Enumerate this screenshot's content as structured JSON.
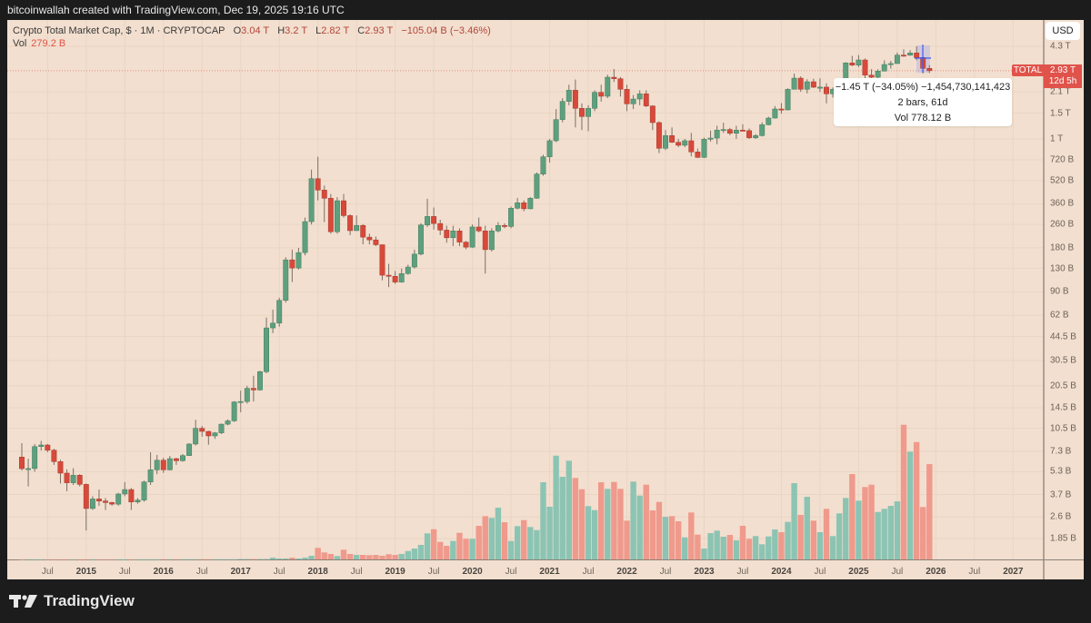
{
  "header": {
    "attribution": "bitcoinwallah created with TradingView.com, Dec 19, 2025 19:16 UTC"
  },
  "legend": {
    "symbol": "Crypto Total Market Cap, $ · 1M · CRYPTOCAP",
    "o_label": "O",
    "o": "3.04 T",
    "h_label": "H",
    "h": "3.2 T",
    "l_label": "L",
    "l": "2.82 T",
    "c_label": "C",
    "c": "2.93 T",
    "change": "−105.04 B (−3.46%)",
    "vol_label": "Vol",
    "vol": "279.2 B"
  },
  "currency_button": "USD",
  "price_badge": {
    "symbol": "TOTAL",
    "price": "2.93 T",
    "countdown": "12d 5h"
  },
  "measure_tooltip": {
    "line1": "−1.45 T (−34.05%) −1,454,730,141,423",
    "line2": "2 bars, 61d",
    "line3": "Vol 778.12 B"
  },
  "footer": {
    "brand": "TradingView"
  },
  "colors": {
    "up": "#5e9f7e",
    "down": "#d8493a",
    "vol_up": "#8cc4b3",
    "vol_down": "#ef9a8c",
    "background": "#f2dfcf",
    "crosshair": "#3d5cf0"
  },
  "chart_data": {
    "type": "candlestick",
    "title": "Crypto Total Market Cap",
    "interval": "1M",
    "yscale": "log",
    "units": "billions USD",
    "price_axis_ticks": [
      {
        "label": "4.3 T",
        "value": 4300
      },
      {
        "label": "2.1 T",
        "value": 2100
      },
      {
        "label": "1.5 T",
        "value": 1500
      },
      {
        "label": "1 T",
        "value": 1000
      },
      {
        "label": "720 B",
        "value": 720
      },
      {
        "label": "520 B",
        "value": 520
      },
      {
        "label": "360 B",
        "value": 360
      },
      {
        "label": "260 B",
        "value": 260
      },
      {
        "label": "180 B",
        "value": 180
      },
      {
        "label": "130 B",
        "value": 130
      },
      {
        "label": "90 B",
        "value": 90
      },
      {
        "label": "62 B",
        "value": 62
      },
      {
        "label": "44.5 B",
        "value": 44.5
      },
      {
        "label": "30.5 B",
        "value": 30.5
      },
      {
        "label": "20.5 B",
        "value": 20.5
      },
      {
        "label": "14.5 B",
        "value": 14.5
      },
      {
        "label": "10.5 B",
        "value": 10.5
      },
      {
        "label": "7.3 B",
        "value": 7.3
      },
      {
        "label": "5.3 B",
        "value": 5.3
      },
      {
        "label": "3.7 B",
        "value": 3.7
      },
      {
        "label": "2.6 B",
        "value": 2.6
      },
      {
        "label": "1.85 B",
        "value": 1.85
      }
    ],
    "time_axis_ticks": [
      {
        "label": "Jul",
        "month": "2014-07"
      },
      {
        "label": "2015",
        "month": "2015-01",
        "year": true
      },
      {
        "label": "Jul",
        "month": "2015-07"
      },
      {
        "label": "2016",
        "month": "2016-01",
        "year": true
      },
      {
        "label": "Jul",
        "month": "2016-07"
      },
      {
        "label": "2017",
        "month": "2017-01",
        "year": true
      },
      {
        "label": "Jul",
        "month": "2017-07"
      },
      {
        "label": "2018",
        "month": "2018-01",
        "year": true
      },
      {
        "label": "Jul",
        "month": "2018-07"
      },
      {
        "label": "2019",
        "month": "2019-01",
        "year": true
      },
      {
        "label": "Jul",
        "month": "2019-07"
      },
      {
        "label": "2020",
        "month": "2020-01",
        "year": true
      },
      {
        "label": "Jul",
        "month": "2020-07"
      },
      {
        "label": "2021",
        "month": "2021-01",
        "year": true
      },
      {
        "label": "Jul",
        "month": "2021-07"
      },
      {
        "label": "2022",
        "month": "2022-01",
        "year": true
      },
      {
        "label": "Jul",
        "month": "2022-07"
      },
      {
        "label": "2023",
        "month": "2023-01",
        "year": true
      },
      {
        "label": "Jul",
        "month": "2023-07"
      },
      {
        "label": "2024",
        "month": "2024-01",
        "year": true
      },
      {
        "label": "Jul",
        "month": "2024-07"
      },
      {
        "label": "2025",
        "month": "2025-01",
        "year": true
      },
      {
        "label": "Jul",
        "month": "2025-07"
      },
      {
        "label": "2026",
        "month": "2026-01",
        "year": true
      },
      {
        "label": "Jul",
        "month": "2026-07"
      },
      {
        "label": "2027",
        "month": "2027-01",
        "year": true
      }
    ],
    "columns": [
      "month",
      "open",
      "high",
      "low",
      "close",
      "volume"
    ],
    "candles": [
      [
        "2014-03",
        6.67,
        8.3,
        5.4,
        5.56,
        0.3
      ],
      [
        "2014-04",
        5.56,
        6.5,
        4.2,
        5.57,
        0.3
      ],
      [
        "2014-05",
        5.57,
        8.2,
        5.3,
        7.87,
        0.3
      ],
      [
        "2014-06",
        7.87,
        8.6,
        7.4,
        8.07,
        0.3
      ],
      [
        "2014-07",
        8.07,
        8.2,
        7.2,
        7.44,
        0.3
      ],
      [
        "2014-08",
        7.44,
        7.6,
        5.9,
        6.21,
        0.3
      ],
      [
        "2014-09",
        6.21,
        6.4,
        4.4,
        5.18,
        0.3
      ],
      [
        "2014-10",
        5.18,
        5.5,
        3.9,
        4.45,
        0.3
      ],
      [
        "2014-11",
        4.45,
        5.6,
        4.3,
        5.01,
        0.3
      ],
      [
        "2014-12",
        5.01,
        5.1,
        4.2,
        4.34,
        0.3
      ],
      [
        "2015-01",
        4.34,
        4.4,
        2.1,
        2.97,
        0.3
      ],
      [
        "2015-02",
        2.97,
        3.6,
        2.9,
        3.45,
        0.3
      ],
      [
        "2015-03",
        3.45,
        4.0,
        3.1,
        3.34,
        0.3
      ],
      [
        "2015-04",
        3.34,
        3.5,
        2.9,
        3.26,
        0.3
      ],
      [
        "2015-05",
        3.26,
        3.3,
        3.1,
        3.18,
        0.3
      ],
      [
        "2015-06",
        3.18,
        3.8,
        3.1,
        3.73,
        0.3
      ],
      [
        "2015-07",
        3.73,
        4.5,
        3.6,
        4.0,
        0.3
      ],
      [
        "2015-08",
        4.0,
        4.1,
        2.9,
        3.29,
        0.3
      ],
      [
        "2015-09",
        3.29,
        3.5,
        3.2,
        3.39,
        0.3
      ],
      [
        "2015-10",
        3.39,
        4.6,
        3.3,
        4.51,
        0.3
      ],
      [
        "2015-11",
        4.51,
        7.2,
        4.3,
        5.46,
        0.3
      ],
      [
        "2015-12",
        5.46,
        6.9,
        5.1,
        6.35,
        0.3
      ],
      [
        "2016-01",
        6.35,
        6.6,
        5.2,
        5.46,
        0.6
      ],
      [
        "2016-02",
        5.46,
        6.8,
        5.4,
        6.51,
        0.6
      ],
      [
        "2016-03",
        6.51,
        6.6,
        5.9,
        6.3,
        0.6
      ],
      [
        "2016-04",
        6.3,
        7.0,
        6.2,
        6.83,
        0.6
      ],
      [
        "2016-05",
        6.83,
        8.3,
        6.8,
        8.19,
        0.6
      ],
      [
        "2016-06",
        8.19,
        12.0,
        8.0,
        10.5,
        0.6
      ],
      [
        "2016-07",
        10.5,
        10.9,
        9.2,
        10.0,
        0.6
      ],
      [
        "2016-08",
        10.0,
        10.1,
        8.1,
        9.31,
        0.6
      ],
      [
        "2016-09",
        9.31,
        9.9,
        8.9,
        9.77,
        0.6
      ],
      [
        "2016-10",
        9.77,
        11.3,
        9.6,
        11.2,
        0.6
      ],
      [
        "2016-11",
        11.2,
        12.1,
        11.0,
        11.8,
        0.6
      ],
      [
        "2016-12",
        11.8,
        16.1,
        11.6,
        15.9,
        0.6
      ],
      [
        "2017-01",
        15.9,
        19.0,
        13.5,
        16.0,
        1.2
      ],
      [
        "2017-02",
        16.0,
        20.5,
        15.5,
        19.7,
        1.2
      ],
      [
        "2017-03",
        19.7,
        24,
        16,
        19.2,
        1.2
      ],
      [
        "2017-04",
        19.2,
        26,
        19,
        25.6,
        1.2
      ],
      [
        "2017-05",
        25.6,
        60,
        25,
        51,
        1.2
      ],
      [
        "2017-06",
        51,
        68,
        47,
        55,
        5.3
      ],
      [
        "2017-07",
        55,
        82,
        52,
        78.7,
        2.7
      ],
      [
        "2017-08",
        78.7,
        155,
        76,
        149,
        2.7
      ],
      [
        "2017-09",
        149,
        175,
        105,
        131,
        5.3
      ],
      [
        "2017-10",
        131,
        180,
        128,
        167,
        2.7
      ],
      [
        "2017-11",
        167,
        290,
        160,
        272,
        5.3
      ],
      [
        "2017-12",
        272,
        617,
        260,
        535,
        10.6
      ],
      [
        "2018-01",
        535,
        755,
        380,
        447,
        33.8
      ],
      [
        "2018-02",
        447,
        480,
        270,
        393,
        20.5
      ],
      [
        "2018-03",
        393,
        420,
        225,
        232,
        16
      ],
      [
        "2018-04",
        232,
        400,
        225,
        378,
        9.8
      ],
      [
        "2018-05",
        378,
        420,
        290,
        299,
        28.5
      ],
      [
        "2018-06",
        299,
        305,
        220,
        236,
        16
      ],
      [
        "2018-07",
        236,
        300,
        235,
        256,
        13.3
      ],
      [
        "2018-08",
        256,
        262,
        190,
        213,
        13.3
      ],
      [
        "2018-09",
        213,
        225,
        190,
        204,
        12.5
      ],
      [
        "2018-10",
        204,
        215,
        185,
        189,
        13.3
      ],
      [
        "2018-11",
        189,
        190,
        108,
        117,
        10.6
      ],
      [
        "2018-12",
        117,
        140,
        97,
        115,
        15.2
      ],
      [
        "2019-01",
        115,
        125,
        102,
        105,
        13.3
      ],
      [
        "2019-02",
        105,
        130,
        104,
        120,
        16
      ],
      [
        "2019-03",
        120,
        138,
        118,
        133,
        24.7
      ],
      [
        "2019-04",
        133,
        175,
        130,
        163,
        31.9
      ],
      [
        "2019-05",
        163,
        265,
        160,
        258,
        42.6
      ],
      [
        "2019-06",
        258,
        390,
        250,
        295,
        76.3
      ],
      [
        "2019-07",
        295,
        340,
        240,
        264,
        88.6
      ],
      [
        "2019-08",
        264,
        280,
        220,
        238,
        51.3
      ],
      [
        "2019-09",
        238,
        255,
        195,
        211,
        39.9
      ],
      [
        "2019-10",
        211,
        255,
        185,
        235,
        54
      ],
      [
        "2019-11",
        235,
        245,
        185,
        197,
        77.9
      ],
      [
        "2019-12",
        197,
        200,
        176,
        182,
        60.4
      ],
      [
        "2020-01",
        182,
        260,
        180,
        250,
        60.4
      ],
      [
        "2020-02",
        250,
        290,
        230,
        235,
        98.4
      ],
      [
        "2020-03",
        235,
        255,
        120,
        175,
        126.9
      ],
      [
        "2020-04",
        175,
        245,
        170,
        235,
        121.6
      ],
      [
        "2020-05",
        235,
        270,
        230,
        256,
        151.6
      ],
      [
        "2020-06",
        256,
        265,
        245,
        252,
        109
      ],
      [
        "2020-07",
        252,
        345,
        245,
        336,
        54
      ],
      [
        "2020-08",
        336,
        395,
        330,
        366,
        97.6
      ],
      [
        "2020-09",
        366,
        380,
        320,
        333,
        115.2
      ],
      [
        "2020-10",
        333,
        400,
        330,
        393,
        95
      ],
      [
        "2020-11",
        393,
        590,
        390,
        575,
        85.9
      ],
      [
        "2020-12",
        575,
        780,
        560,
        755,
        226.1
      ],
      [
        "2021-01",
        755,
        1000,
        690,
        972,
        154.3
      ],
      [
        "2021-02",
        972,
        1600,
        950,
        1357,
        304
      ],
      [
        "2021-03",
        1357,
        1900,
        1300,
        1806,
        242
      ],
      [
        "2021-04",
        1806,
        2350,
        1700,
        2154,
        289.1
      ],
      [
        "2021-05",
        2154,
        2550,
        1200,
        1619,
        238.6
      ],
      [
        "2021-06",
        1619,
        1750,
        1150,
        1423,
        205.6
      ],
      [
        "2021-07",
        1423,
        1700,
        1130,
        1619,
        156.1
      ],
      [
        "2021-08",
        1619,
        2150,
        1550,
        2083,
        144.4
      ],
      [
        "2021-09",
        2083,
        2350,
        1800,
        1959,
        226.1
      ],
      [
        "2021-10",
        1959,
        2750,
        1900,
        2644,
        206.7
      ],
      [
        "2021-11",
        2644,
        3006,
        2450,
        2582,
        226.9
      ],
      [
        "2021-12",
        2582,
        2650,
        1950,
        2186,
        206.7
      ],
      [
        "2022-01",
        2186,
        2350,
        1550,
        1738,
        113.6
      ],
      [
        "2022-02",
        1738,
        2000,
        1600,
        1875,
        228
      ],
      [
        "2022-03",
        1875,
        2150,
        1700,
        2035,
        187
      ],
      [
        "2022-04",
        2035,
        2150,
        1650,
        1681,
        218.9
      ],
      [
        "2022-05",
        1681,
        1700,
        1150,
        1294,
        143.6
      ],
      [
        "2022-06",
        1294,
        1320,
        800,
        863,
        168.4
      ],
      [
        "2022-07",
        863,
        1150,
        840,
        1054,
        125
      ],
      [
        "2022-08",
        1054,
        1200,
        940,
        949,
        126.9
      ],
      [
        "2022-09",
        949,
        1000,
        880,
        905,
        111.7
      ],
      [
        "2022-10",
        905,
        1000,
        880,
        972,
        64.6
      ],
      [
        "2022-11",
        972,
        1100,
        760,
        815,
        137.5
      ],
      [
        "2022-12",
        815,
        860,
        740,
        748,
        72.6
      ],
      [
        "2023-01",
        748,
        1020,
        740,
        995,
        31.9
      ],
      [
        "2023-02",
        995,
        1140,
        960,
        1014,
        77.1
      ],
      [
        "2023-03",
        1014,
        1230,
        920,
        1149,
        84.3
      ],
      [
        "2023-04",
        1149,
        1290,
        1100,
        1160,
        66.5
      ],
      [
        "2023-05",
        1160,
        1190,
        1060,
        1094,
        71.8
      ],
      [
        "2023-06",
        1094,
        1230,
        1000,
        1149,
        55.9
      ],
      [
        "2023-07",
        1149,
        1260,
        1130,
        1140,
        98.4
      ],
      [
        "2023-08",
        1140,
        1180,
        1000,
        1019,
        60.4
      ],
      [
        "2023-09",
        1019,
        1080,
        1000,
        1054,
        68.4
      ],
      [
        "2023-10",
        1054,
        1300,
        1040,
        1251,
        44.4
      ],
      [
        "2023-11",
        1251,
        1420,
        1240,
        1389,
        67.3
      ],
      [
        "2023-12",
        1389,
        1680,
        1380,
        1603,
        87.8
      ],
      [
        "2024-01",
        1603,
        1760,
        1490,
        1580,
        79.8
      ],
      [
        "2024-02",
        1580,
        2220,
        1570,
        2186,
        109.9
      ],
      [
        "2024-03",
        2186,
        2800,
        2180,
        2606,
        223.4
      ],
      [
        "2024-04",
        2606,
        2680,
        2100,
        2186,
        130.3
      ],
      [
        "2024-05",
        2186,
        2560,
        2050,
        2462,
        183.5
      ],
      [
        "2024-06",
        2462,
        2580,
        2230,
        2259,
        113.6
      ],
      [
        "2024-07",
        2259,
        2600,
        2100,
        2262,
        79.8
      ],
      [
        "2024-08",
        2262,
        2400,
        1750,
        2035,
        148.2
      ],
      [
        "2024-09",
        2035,
        2250,
        1920,
        2186,
        68.4
      ],
      [
        "2024-10",
        2186,
        2450,
        2100,
        2292,
        134.9
      ],
      [
        "2024-11",
        2292,
        3350,
        2200,
        3311,
        180.1
      ],
      [
        "2024-12",
        3311,
        3700,
        3150,
        3199,
        250
      ],
      [
        "2025-01",
        3199,
        3750,
        3100,
        3469,
        172.1
      ],
      [
        "2025-02",
        3469,
        3550,
        2600,
        2734,
        212
      ],
      [
        "2025-03",
        2734,
        3000,
        2550,
        2644,
        218.9
      ],
      [
        "2025-04",
        2644,
        3000,
        2350,
        2911,
        139.1
      ],
      [
        "2025-05",
        2911,
        3450,
        2900,
        3230,
        148.2
      ],
      [
        "2025-06",
        3230,
        3420,
        3030,
        3278,
        156.9
      ],
      [
        "2025-07",
        3278,
        3900,
        3270,
        3745,
        170.2
      ],
      [
        "2025-08",
        3745,
        4100,
        3650,
        3740,
        394.5
      ],
      [
        "2025-09",
        3740,
        4050,
        3700,
        3874,
        315.7
      ],
      [
        "2025-10",
        3874,
        4300,
        3450,
        3606,
        343.9
      ],
      [
        "2025-11",
        3606,
        3700,
        2800,
        3040,
        153.5
      ],
      [
        "2025-12",
        3040,
        3200,
        2820,
        2930,
        279.2
      ]
    ],
    "last_price": 2930,
    "measurement": {
      "from_month": "2025-10",
      "to_month": "2025-12",
      "change": -1454.73,
      "percent": -34.05,
      "bars": 2,
      "days": 61,
      "volume": 778.12
    }
  }
}
